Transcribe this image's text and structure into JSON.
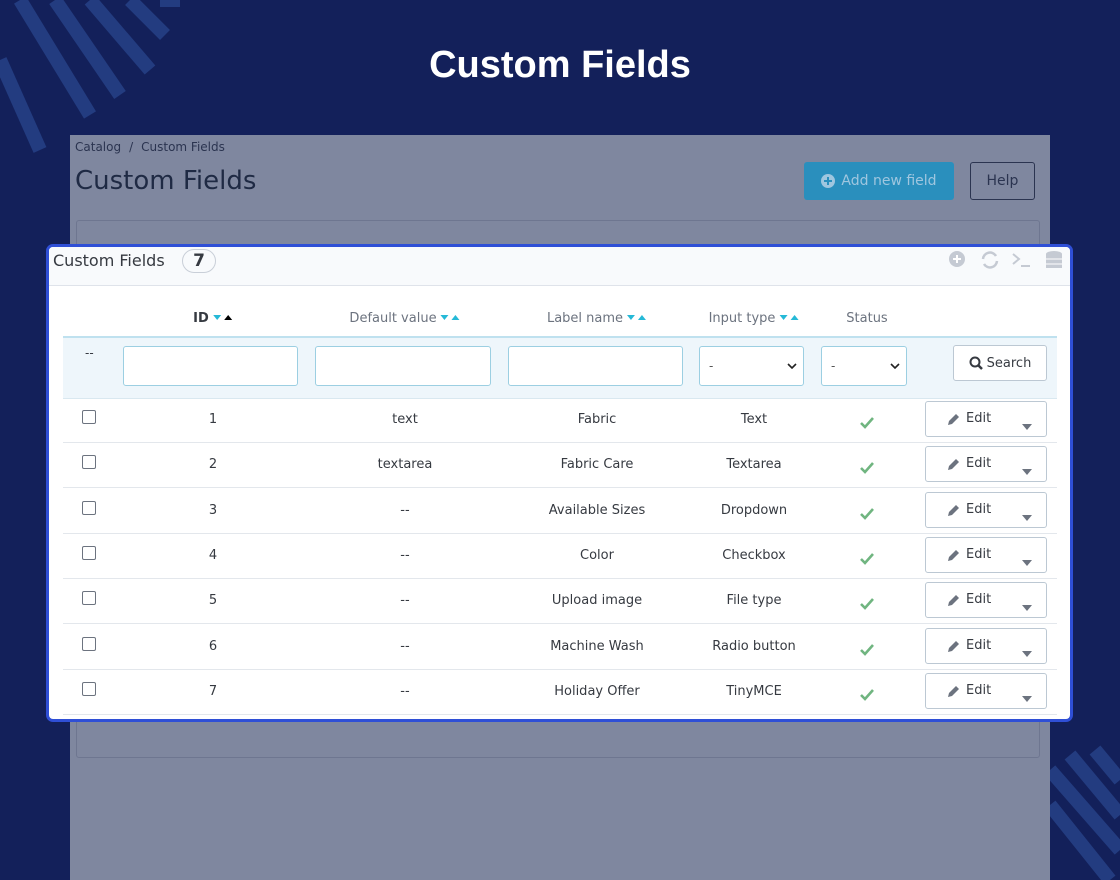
{
  "header": {
    "title": "Custom Fields"
  },
  "breadcrumb": {
    "items": [
      "Catalog",
      "Custom Fields"
    ],
    "separator": "/"
  },
  "page": {
    "title": "Custom Fields",
    "add_button": "Add new field",
    "help_button": "Help"
  },
  "panel": {
    "title": "Custom Fields",
    "count": 7
  },
  "table": {
    "columns": [
      "ID",
      "Default value",
      "Label name",
      "Input type",
      "Status"
    ],
    "filters": {
      "empty": "--",
      "input_type": "-",
      "status": "-",
      "search": "Search"
    },
    "edit_button": "Edit",
    "rows": [
      [
        1,
        "text",
        "Fabric",
        "Text"
      ],
      [
        2,
        "textarea",
        "Fabric Care",
        "Textarea"
      ],
      [
        3,
        "--",
        "Available Sizes",
        "Dropdown"
      ],
      [
        4,
        "--",
        "Color",
        "Checkbox"
      ],
      [
        5,
        "--",
        "Upload image",
        "File type"
      ],
      [
        6,
        "--",
        "Machine Wash",
        "Radio button"
      ],
      [
        7,
        "--",
        "Holiday Offer",
        "TinyMCE"
      ]
    ]
  }
}
